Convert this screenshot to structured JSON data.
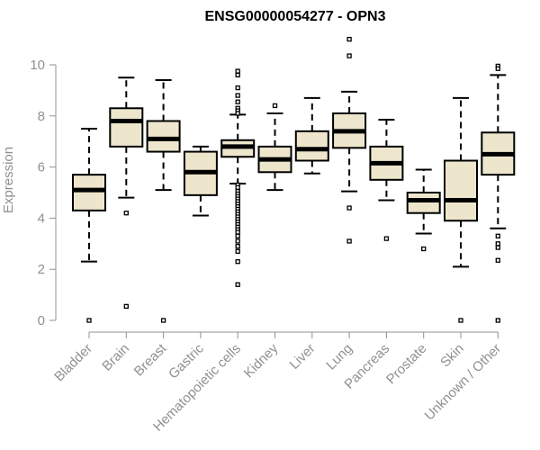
{
  "chart_data": {
    "type": "boxplot",
    "title": "ENSG00000054277 - OPN3",
    "xlabel": "",
    "ylabel": "Expression",
    "ylim": [
      0,
      11
    ],
    "yticks": [
      0,
      2,
      4,
      6,
      8,
      10
    ],
    "colors": {
      "box_fill": "#ede6cc",
      "median": "#000000",
      "axis": "#909090",
      "text": "#909090"
    },
    "categories": [
      "Bladder",
      "Brain",
      "Breast",
      "Gastric",
      "Hematopoietic cells",
      "Kidney",
      "Liver",
      "Lung",
      "Pancreas",
      "Prostate",
      "Skin",
      "Unknown / Other"
    ],
    "boxes": [
      {
        "name": "Bladder",
        "q1": 4.3,
        "median": 5.1,
        "q3": 5.7,
        "whisker_low": 2.3,
        "whisker_high": 7.5,
        "outliers": [
          0.0
        ]
      },
      {
        "name": "Brain",
        "q1": 6.8,
        "median": 7.8,
        "q3": 8.3,
        "whisker_low": 4.8,
        "whisker_high": 9.5,
        "outliers": [
          4.2,
          0.55
        ]
      },
      {
        "name": "Breast",
        "q1": 6.6,
        "median": 7.1,
        "q3": 7.8,
        "whisker_low": 5.1,
        "whisker_high": 9.4,
        "outliers": [
          0.0
        ]
      },
      {
        "name": "Gastric",
        "q1": 4.9,
        "median": 5.8,
        "q3": 6.6,
        "whisker_low": 4.1,
        "whisker_high": 6.8,
        "outliers": []
      },
      {
        "name": "Hematopoietic cells",
        "q1": 6.4,
        "median": 6.8,
        "q3": 7.05,
        "whisker_low": 5.35,
        "whisker_high": 8.05,
        "outliers": [
          9.75,
          9.6,
          9.1,
          8.8,
          8.55,
          8.3,
          8.2,
          8.1,
          5.3,
          5.2,
          5.05,
          4.95,
          4.85,
          4.75,
          4.65,
          4.55,
          4.45,
          4.35,
          4.25,
          4.15,
          4.05,
          3.95,
          3.85,
          3.75,
          3.65,
          3.55,
          3.45,
          3.3,
          3.1,
          2.9,
          2.7,
          2.3,
          1.4
        ]
      },
      {
        "name": "Kidney",
        "q1": 5.8,
        "median": 6.3,
        "q3": 6.8,
        "whisker_low": 5.1,
        "whisker_high": 8.1,
        "outliers": [
          8.4
        ]
      },
      {
        "name": "Liver",
        "q1": 6.25,
        "median": 6.7,
        "q3": 7.4,
        "whisker_low": 5.75,
        "whisker_high": 8.7,
        "outliers": []
      },
      {
        "name": "Lung",
        "q1": 6.75,
        "median": 7.4,
        "q3": 8.1,
        "whisker_low": 5.05,
        "whisker_high": 8.95,
        "outliers": [
          11.0,
          10.35,
          4.4,
          3.1
        ]
      },
      {
        "name": "Pancreas",
        "q1": 5.5,
        "median": 6.15,
        "q3": 6.8,
        "whisker_low": 4.7,
        "whisker_high": 7.85,
        "outliers": [
          3.2
        ]
      },
      {
        "name": "Prostate",
        "q1": 4.2,
        "median": 4.7,
        "q3": 5.0,
        "whisker_low": 3.4,
        "whisker_high": 5.9,
        "outliers": [
          2.8
        ]
      },
      {
        "name": "Skin",
        "q1": 3.9,
        "median": 4.7,
        "q3": 6.25,
        "whisker_low": 2.1,
        "whisker_high": 8.7,
        "outliers": [
          0.0
        ]
      },
      {
        "name": "Unknown / Other",
        "q1": 5.7,
        "median": 6.5,
        "q3": 7.35,
        "whisker_low": 3.6,
        "whisker_high": 9.6,
        "outliers": [
          9.95,
          9.85,
          3.3,
          3.0,
          2.85,
          2.35,
          0.0
        ]
      }
    ]
  }
}
